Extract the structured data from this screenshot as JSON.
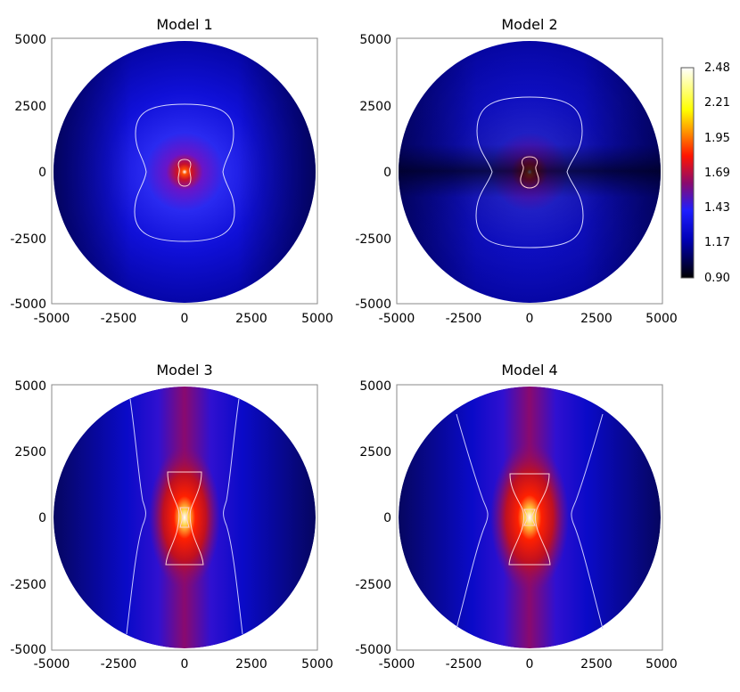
{
  "chart_data": [
    {
      "type": "heatmap",
      "title": "Model 1",
      "xlim": [
        -5000,
        5000
      ],
      "ylim": [
        -5000,
        5000
      ],
      "x_ticks": [
        "-5000",
        "-2500",
        "0",
        "2500",
        "5000"
      ],
      "y_ticks": [
        "5000",
        "2500",
        "0",
        "-2500",
        "-5000"
      ],
      "pattern": "isotropic",
      "contours": [
        "bean-shaped contour, half-width ~1800, top ~2650, bottom ~-2600",
        "small inner contour near center"
      ]
    },
    {
      "type": "heatmap",
      "title": "Model 2",
      "xlim": [
        -5000,
        5000
      ],
      "ylim": [
        -5000,
        5000
      ],
      "x_ticks": [
        "-5000",
        "-2500",
        "0",
        "2500",
        "5000"
      ],
      "y_ticks": [
        "5000",
        "2500",
        "0",
        "-2500",
        "-5000"
      ],
      "pattern": "isotropic with dark equatorial band",
      "contours": [
        "bean-shaped contour, half-width ~2000, top ~2900, bottom ~-2900",
        "small inner contour near center"
      ]
    },
    {
      "type": "heatmap",
      "title": "Model 3",
      "xlim": [
        -5000,
        5000
      ],
      "ylim": [
        -5000,
        5000
      ],
      "x_ticks": [
        "-5000",
        "-2500",
        "0",
        "2500",
        "5000"
      ],
      "y_ticks": [
        "5000",
        "2500",
        "0",
        "-2500",
        "-5000"
      ],
      "pattern": "bipolar cone",
      "contours": [
        "outer hourglass lines x~±2100 at poles, x~±1500 at equator",
        "inner hourglass ~±1600 in y",
        "small contour at center"
      ]
    },
    {
      "type": "heatmap",
      "title": "Model 4",
      "xlim": [
        -5000,
        5000
      ],
      "ylim": [
        -5000,
        5000
      ],
      "x_ticks": [
        "-5000",
        "-2500",
        "0",
        "2500",
        "5000"
      ],
      "y_ticks": [
        "5000",
        "2500",
        "0",
        "-2500",
        "-5000"
      ],
      "pattern": "bipolar cone, wider",
      "contours": [
        "outer hourglass lines x~±2800 at poles, x~±1600 at equator",
        "inner hourglass ~±1700 in y",
        "small contour at center"
      ]
    }
  ],
  "colorbar": {
    "min": 0.9,
    "max": 2.48,
    "tick_labels": [
      "2.48",
      "2.21",
      "1.95",
      "1.69",
      "1.43",
      "1.17",
      "0.90"
    ],
    "colormap": [
      "#000000",
      "#0000b4",
      "#1e1eff",
      "#8a0a6e",
      "#ff1400",
      "#ff9900",
      "#ffff00",
      "#ffffff"
    ]
  }
}
